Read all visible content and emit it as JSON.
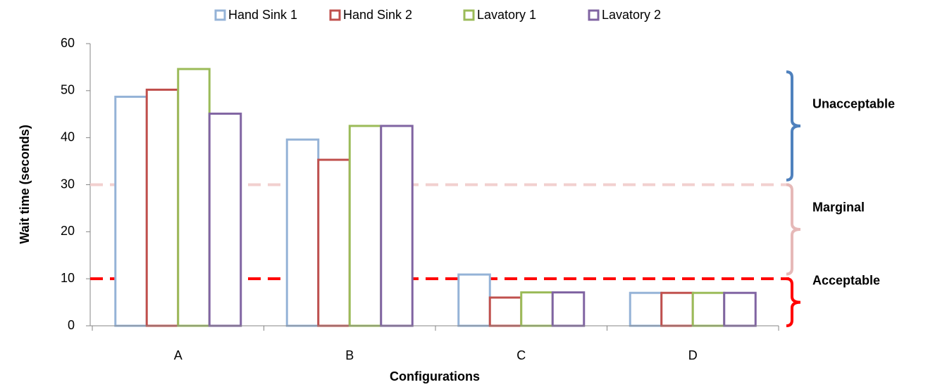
{
  "chart_data": {
    "type": "bar",
    "x_label": "Configurations",
    "y_label": "Wait time (seconds)",
    "categories": [
      "A",
      "B",
      "C",
      "D"
    ],
    "series": [
      {
        "name": "Hand Sink 1",
        "color": "#95b3d7",
        "values": [
          48.7,
          39.6,
          10.9,
          7.0
        ]
      },
      {
        "name": "Hand Sink 2",
        "color": "#c0504d",
        "values": [
          50.2,
          35.3,
          6.0,
          7.0
        ]
      },
      {
        "name": "Lavatory 1",
        "color": "#9bbb59",
        "values": [
          54.6,
          42.5,
          7.1,
          7.0
        ]
      },
      {
        "name": "Lavatory 2",
        "color": "#8064a2",
        "values": [
          45.1,
          42.5,
          7.1,
          7.0
        ]
      }
    ],
    "ylim": [
      0,
      60
    ],
    "yticks": [
      0,
      10,
      20,
      30,
      40,
      50,
      60
    ],
    "legend": "top",
    "reference_lines": [
      {
        "value": 30,
        "color": "#f2d0cf"
      },
      {
        "value": 10,
        "color": "#ff0000"
      }
    ],
    "annotations": [
      {
        "text": "Unacceptable",
        "color": "#4f81bd",
        "range": [
          31,
          54
        ]
      },
      {
        "text": "Marginal",
        "color": "#e6b9b8",
        "range": [
          11,
          30
        ]
      },
      {
        "text": "Acceptable",
        "color": "#ff0000",
        "range": [
          0,
          10
        ]
      }
    ]
  }
}
